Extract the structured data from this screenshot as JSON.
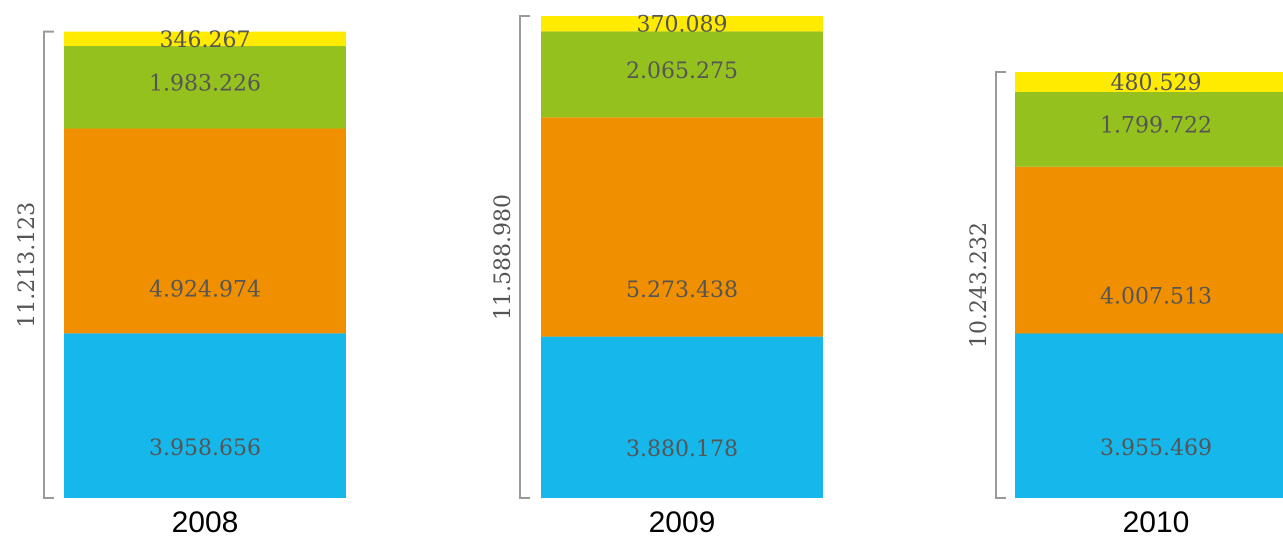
{
  "chart_data": {
    "type": "bar",
    "stacked": true,
    "categories": [
      "2008",
      "2009",
      "2010"
    ],
    "series": [
      {
        "color": "#16b7ea",
        "values": [
          3958656,
          3880178,
          3955469
        ],
        "labels": [
          "3.958.656",
          "3.880.178",
          "3.955.469"
        ]
      },
      {
        "color": "#f09000",
        "values": [
          4924974,
          5273438,
          4007513
        ],
        "labels": [
          "4.924.974",
          "5.273.438",
          "4.007.513"
        ]
      },
      {
        "color": "#95c11f",
        "values": [
          1983226,
          2065275,
          1799722
        ],
        "labels": [
          "1.983.226",
          "2.065.275",
          "1.799.722"
        ]
      },
      {
        "color": "#ffeb00",
        "values": [
          346267,
          370089,
          480529
        ],
        "labels": [
          "346.267",
          "370.089",
          "480.529"
        ]
      }
    ],
    "totals": [
      11213123,
      11588980,
      10243232
    ],
    "total_labels": [
      "11.213.123",
      "11.588.980",
      "10.243.232"
    ],
    "ylim": [
      0,
      11588980
    ],
    "grid": false,
    "legend": "none"
  }
}
